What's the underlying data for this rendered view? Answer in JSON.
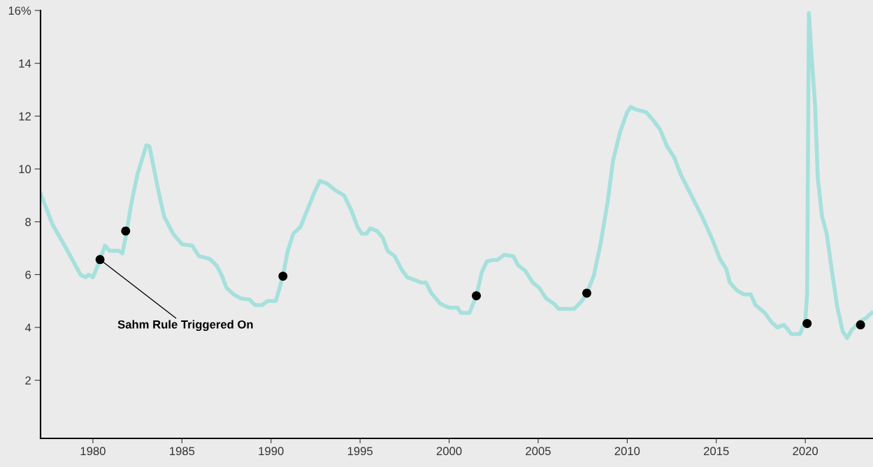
{
  "chart_data": {
    "type": "line",
    "xlim": [
      1977.06,
      2023.8
    ],
    "ylim": [
      -0.2,
      16
    ],
    "xticks": [
      1980,
      1985,
      1990,
      1995,
      2000,
      2005,
      2010,
      2015,
      2020
    ],
    "yticks": [
      2,
      4,
      6,
      8,
      10,
      12,
      14,
      {
        "value": 16,
        "label": "16%"
      }
    ],
    "grid": false,
    "legend": false,
    "marker": "none",
    "line_style": "solid",
    "annotations": [
      {
        "text": "Sahm Rule Triggered On",
        "x": 1980.4,
        "y": 6.57
      }
    ],
    "series": [
      {
        "color": "#a6e0dc",
        "x": [
          1977.06,
          1977.33,
          1977.73,
          1978.24,
          1978.7,
          1979.3,
          1979.6,
          1979.76,
          1980.0,
          1980.4,
          1980.67,
          1980.94,
          1981.45,
          1981.65,
          1981.84,
          1982.16,
          1982.5,
          1982.8,
          1983.0,
          1983.18,
          1983.4,
          1983.7,
          1984.0,
          1984.5,
          1985.0,
          1985.57,
          1985.96,
          1986.55,
          1986.94,
          1987.25,
          1987.5,
          1987.9,
          1988.3,
          1988.8,
          1989.1,
          1989.5,
          1989.8,
          1990.27,
          1990.67,
          1990.94,
          1991.25,
          1991.65,
          1992.04,
          1992.43,
          1992.75,
          1993.14,
          1993.6,
          1994.1,
          1994.5,
          1994.86,
          1995.1,
          1995.37,
          1995.57,
          1995.96,
          1996.27,
          1996.55,
          1996.94,
          1997.33,
          1997.65,
          1998.04,
          1998.43,
          1998.7,
          1999.0,
          1999.5,
          2000.0,
          2000.47,
          2000.67,
          2001.14,
          2001.53,
          2001.84,
          2002.12,
          2002.43,
          2002.7,
          2003.1,
          2003.6,
          2003.88,
          2004.27,
          2004.7,
          2005.06,
          2005.45,
          2005.88,
          2006.16,
          2006.55,
          2007.02,
          2007.45,
          2007.73,
          2008.12,
          2008.5,
          2008.9,
          2009.2,
          2009.6,
          2010.0,
          2010.2,
          2010.47,
          2010.8,
          2011.06,
          2011.45,
          2011.84,
          2012.24,
          2012.63,
          2013.0,
          2013.6,
          2014.2,
          2014.8,
          2015.2,
          2015.57,
          2015.76,
          2016.16,
          2016.55,
          2016.94,
          2017.2,
          2017.73,
          2018.1,
          2018.43,
          2018.8,
          2019.22,
          2019.7,
          2020.0,
          2020.1,
          2020.2,
          2020.35,
          2020.55,
          2020.7,
          2020.94,
          2021.2,
          2021.5,
          2021.8,
          2022.1,
          2022.35,
          2022.6,
          2023.1,
          2023.4,
          2023.73
        ],
        "values": [
          9.07,
          8.6,
          7.9,
          7.3,
          6.75,
          6.0,
          5.9,
          6.0,
          5.9,
          6.55,
          7.1,
          6.9,
          6.9,
          6.8,
          7.4,
          8.7,
          9.8,
          10.45,
          10.9,
          10.85,
          10.1,
          9.1,
          8.2,
          7.55,
          7.15,
          7.1,
          6.7,
          6.6,
          6.35,
          5.95,
          5.5,
          5.25,
          5.1,
          5.05,
          4.85,
          4.85,
          5.0,
          5.0,
          5.95,
          6.9,
          7.55,
          7.8,
          8.45,
          9.1,
          9.55,
          9.45,
          9.2,
          9.0,
          8.45,
          7.8,
          7.55,
          7.55,
          7.75,
          7.65,
          7.4,
          6.9,
          6.7,
          6.2,
          5.9,
          5.8,
          5.7,
          5.7,
          5.3,
          4.9,
          4.75,
          4.75,
          4.55,
          4.55,
          5.2,
          6.1,
          6.5,
          6.55,
          6.55,
          6.75,
          6.7,
          6.35,
          6.15,
          5.7,
          5.5,
          5.1,
          4.9,
          4.7,
          4.7,
          4.7,
          5.0,
          5.3,
          5.95,
          7.15,
          8.75,
          10.3,
          11.4,
          12.15,
          12.35,
          12.25,
          12.2,
          12.15,
          11.85,
          11.5,
          10.85,
          10.45,
          9.8,
          9.0,
          8.2,
          7.3,
          6.6,
          6.2,
          5.7,
          5.4,
          5.25,
          5.25,
          4.85,
          4.55,
          4.2,
          4.0,
          4.1,
          3.75,
          3.75,
          4.25,
          5.3,
          15.9,
          14.3,
          12.4,
          9.65,
          8.2,
          7.55,
          6.1,
          4.75,
          3.85,
          3.6,
          3.9,
          4.25,
          4.35,
          4.55
        ]
      },
      {
        "type": "scatter",
        "color": "#000000",
        "marker": "circle",
        "x": [
          1980.4,
          1981.84,
          1990.67,
          2001.53,
          2007.73,
          2020.1,
          2023.1
        ],
        "values": [
          6.57,
          7.65,
          5.94,
          5.2,
          5.3,
          4.15,
          4.1
        ]
      }
    ]
  }
}
